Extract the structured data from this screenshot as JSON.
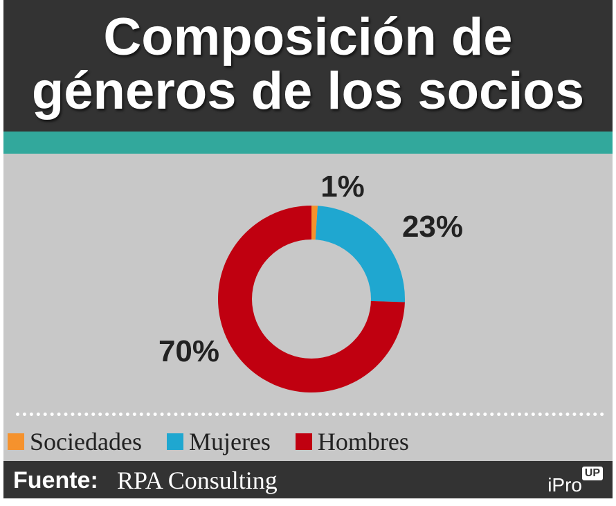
{
  "header": {
    "title_line1": "Composición de",
    "title_line2": "géneros de los socios"
  },
  "chart_data": {
    "type": "pie",
    "title": "Composición de géneros de los socios",
    "categories": [
      "Sociedades",
      "Mujeres",
      "Hombres"
    ],
    "values": [
      1,
      23,
      70
    ],
    "labels": [
      "1%",
      "23%",
      "70%"
    ],
    "colors": [
      "#f5922d",
      "#1fa7d0",
      "#c00010"
    ],
    "donut": true,
    "legend": "bottom"
  },
  "legend": {
    "items": [
      {
        "label": "Sociedades",
        "color": "#f5922d"
      },
      {
        "label": "Mujeres",
        "color": "#1fa7d0"
      },
      {
        "label": "Hombres",
        "color": "#c00010"
      }
    ]
  },
  "footer": {
    "source_label": "Fuente:",
    "source_value": "RPA Consulting",
    "logo_text": "iPro",
    "logo_badge": "UP"
  },
  "colors": {
    "header_bg": "#333333",
    "accent_teal": "#32a89c",
    "chart_bg": "#c8c8c8"
  }
}
